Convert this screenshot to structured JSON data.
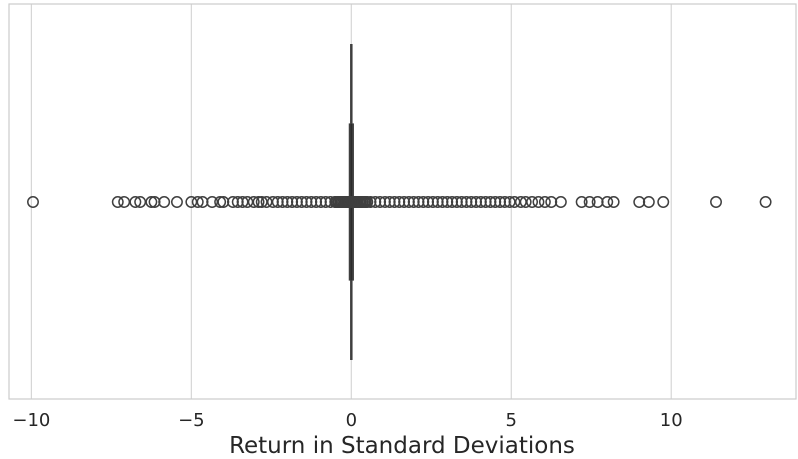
{
  "chart_data": {
    "type": "boxplot",
    "orientation": "horizontal",
    "title": "",
    "xlabel": "Return in Standard Deviations",
    "ylabel": "",
    "xlim": [
      -10.7,
      13.9
    ],
    "xticks": [
      -10,
      -5,
      0,
      5,
      10
    ],
    "xtick_labels": [
      "−10",
      "−5",
      "0",
      "5",
      "10"
    ],
    "grid": "vertical",
    "box": {
      "q1": -0.03,
      "median": 0.0,
      "q3": 0.03,
      "whisker_low": -0.05,
      "whisker_high": 0.05
    },
    "outliers": [
      -9.95,
      -7.3,
      -7.1,
      -6.75,
      -6.6,
      -6.25,
      -6.15,
      -5.85,
      -5.45,
      -5.0,
      -4.8,
      -4.65,
      -4.35,
      -4.1,
      -4.0,
      -3.7,
      -3.55,
      -3.4,
      -3.25,
      -3.05,
      -2.9,
      -2.8,
      -2.65,
      -2.45,
      -2.3,
      -2.15,
      -2.0,
      -1.85,
      -1.7,
      -1.55,
      -1.4,
      -1.25,
      -1.1,
      -0.95,
      -0.8,
      -0.65,
      -0.5,
      -0.4,
      -0.3,
      -0.2,
      -0.1,
      0.1,
      0.2,
      0.3,
      0.45,
      0.6,
      0.75,
      0.9,
      1.05,
      1.2,
      1.35,
      1.5,
      1.65,
      1.8,
      1.95,
      2.1,
      2.25,
      2.4,
      2.55,
      2.7,
      2.85,
      3.0,
      3.15,
      3.3,
      3.45,
      3.6,
      3.75,
      3.9,
      4.05,
      4.2,
      4.35,
      4.5,
      4.65,
      4.8,
      4.95,
      5.1,
      5.3,
      5.45,
      5.65,
      5.85,
      6.05,
      6.25,
      6.55,
      7.2,
      7.45,
      7.7,
      8.0,
      8.2,
      9.0,
      9.3,
      9.75,
      11.4,
      12.95
    ],
    "colors": {
      "box_line": "#3f3f3f",
      "grid": "#d6d6d6",
      "frame": "#cccccc",
      "text": "#262626"
    }
  }
}
